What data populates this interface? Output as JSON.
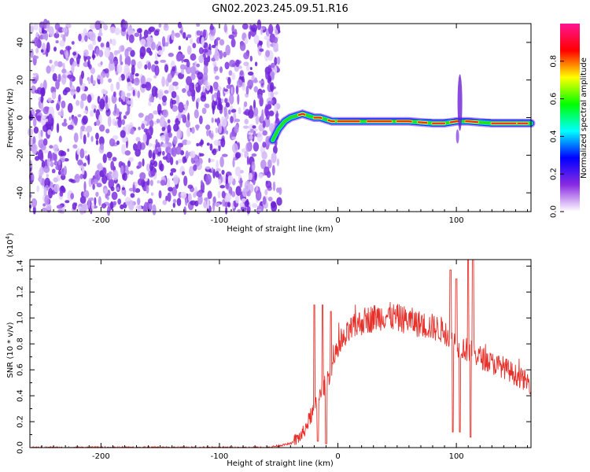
{
  "title": "GN02.2023.245.09.51.R16",
  "chart_data": [
    {
      "type": "heatmap",
      "xlabel": "Height of straight line (km)",
      "ylabel": "Frequency (Hz)",
      "xlim": [
        -260,
        163
      ],
      "ylim": [
        -50,
        50
      ],
      "xticks": [
        -200,
        -100,
        0,
        100
      ],
      "yticks": [
        -40,
        -20,
        0,
        20,
        40
      ],
      "colorbar": {
        "label": "Normalized spectral amplitude",
        "range": [
          0,
          1
        ],
        "ticks": [
          "0.0",
          "0.2",
          "0.4",
          "0.6",
          "0.8"
        ],
        "colors": [
          "#ffffff",
          "#8a2be2",
          "#0000ff",
          "#00ffff",
          "#00ff00",
          "#ffff00",
          "#ff0000",
          "#ff1493"
        ]
      },
      "noise_region_x": [
        -260,
        -50
      ],
      "ridge": {
        "x": [
          -55,
          -50,
          -45,
          -40,
          -35,
          -30,
          -25,
          -20,
          -15,
          -10,
          -5,
          0,
          20,
          40,
          60,
          80,
          90,
          100,
          110,
          130,
          150,
          163
        ],
        "y": [
          -12,
          -6,
          -2,
          0,
          1,
          2,
          1,
          0,
          0,
          -1,
          -2,
          -2,
          -2,
          -2,
          -2,
          -3,
          -3,
          -2,
          -2,
          -3,
          -3,
          -3
        ]
      },
      "spike_x": 103,
      "spike_y_range": [
        -15,
        15
      ]
    },
    {
      "type": "line",
      "xlabel": "Height of straight line (km)",
      "ylabel": "SNR (10 * v/v)",
      "multiplier_label": "(x10",
      "multiplier_exp": "4",
      "multiplier_close": ")",
      "xlim": [
        -260,
        163
      ],
      "ylim": [
        0,
        1.45
      ],
      "xticks": [
        -200,
        -100,
        0,
        100
      ],
      "yticks": [
        "0.0",
        "0.2",
        "0.4",
        "0.6",
        "0.8",
        "1.0",
        "1.2",
        "1.4"
      ],
      "color": "#e8302a",
      "envelope": {
        "x": [
          -260,
          -60,
          -40,
          -30,
          -20,
          -10,
          0,
          10,
          20,
          30,
          40,
          50,
          60,
          70,
          80,
          90,
          100,
          110,
          120,
          130,
          140,
          150,
          163
        ],
        "y": [
          0.0,
          0.0,
          0.03,
          0.1,
          0.3,
          0.5,
          0.75,
          0.9,
          0.97,
          1.0,
          1.02,
          1.0,
          0.98,
          0.95,
          0.93,
          0.9,
          0.8,
          0.75,
          0.7,
          0.65,
          0.62,
          0.56,
          0.49
        ]
      },
      "spikes": [
        {
          "x": -20,
          "y": 1.1
        },
        {
          "x": -17,
          "y": 0.05
        },
        {
          "x": -13,
          "y": 1.1
        },
        {
          "x": -10,
          "y": 0.03
        },
        {
          "x": -6,
          "y": 1.05
        },
        {
          "x": 95,
          "y": 1.37
        },
        {
          "x": 97,
          "y": 0.12
        },
        {
          "x": 100,
          "y": 1.3
        },
        {
          "x": 103,
          "y": 0.12
        },
        {
          "x": 110,
          "y": 1.47
        },
        {
          "x": 112,
          "y": 0.08
        },
        {
          "x": 114,
          "y": 1.45
        }
      ]
    }
  ]
}
